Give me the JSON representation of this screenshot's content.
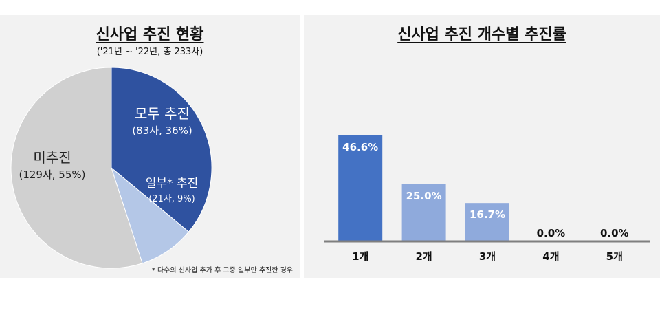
{
  "chart_data": [
    {
      "type": "pie",
      "title": "신사업 추진 현황",
      "subtitle": "('21년 ~ '22년, 총 233사)",
      "slices": [
        {
          "label": "모두 추진",
          "detail": "(83사, 36%)",
          "value": 36,
          "color": "#2f52a0",
          "text_color": "#ffffff"
        },
        {
          "label": "일부* 추진",
          "detail": "(21사, 9%)",
          "value": 9,
          "color": "#b4c7e7",
          "text_color": "#ffffff"
        },
        {
          "label": "미추진",
          "detail": "(129사, 55%)",
          "value": 55,
          "color": "#d0d0d0",
          "text_color": "#222222"
        }
      ],
      "footnote": "* 다수의 신사업 추가 후 그중 일부만 추진한 경우"
    },
    {
      "type": "bar",
      "title": "신사업 추진 개수별 추진률",
      "categories": [
        "1개",
        "2개",
        "3개",
        "4개",
        "5개"
      ],
      "values": [
        46.6,
        25.0,
        16.7,
        0.0,
        0.0
      ],
      "value_labels": [
        "46.6%",
        "25.0%",
        "16.7%",
        "0.0%",
        "0.0%"
      ],
      "colors": [
        "#4472c4",
        "#8faadc",
        "#8faadc",
        "#8faadc",
        "#8faadc"
      ],
      "ylim": [
        0,
        60
      ]
    }
  ]
}
